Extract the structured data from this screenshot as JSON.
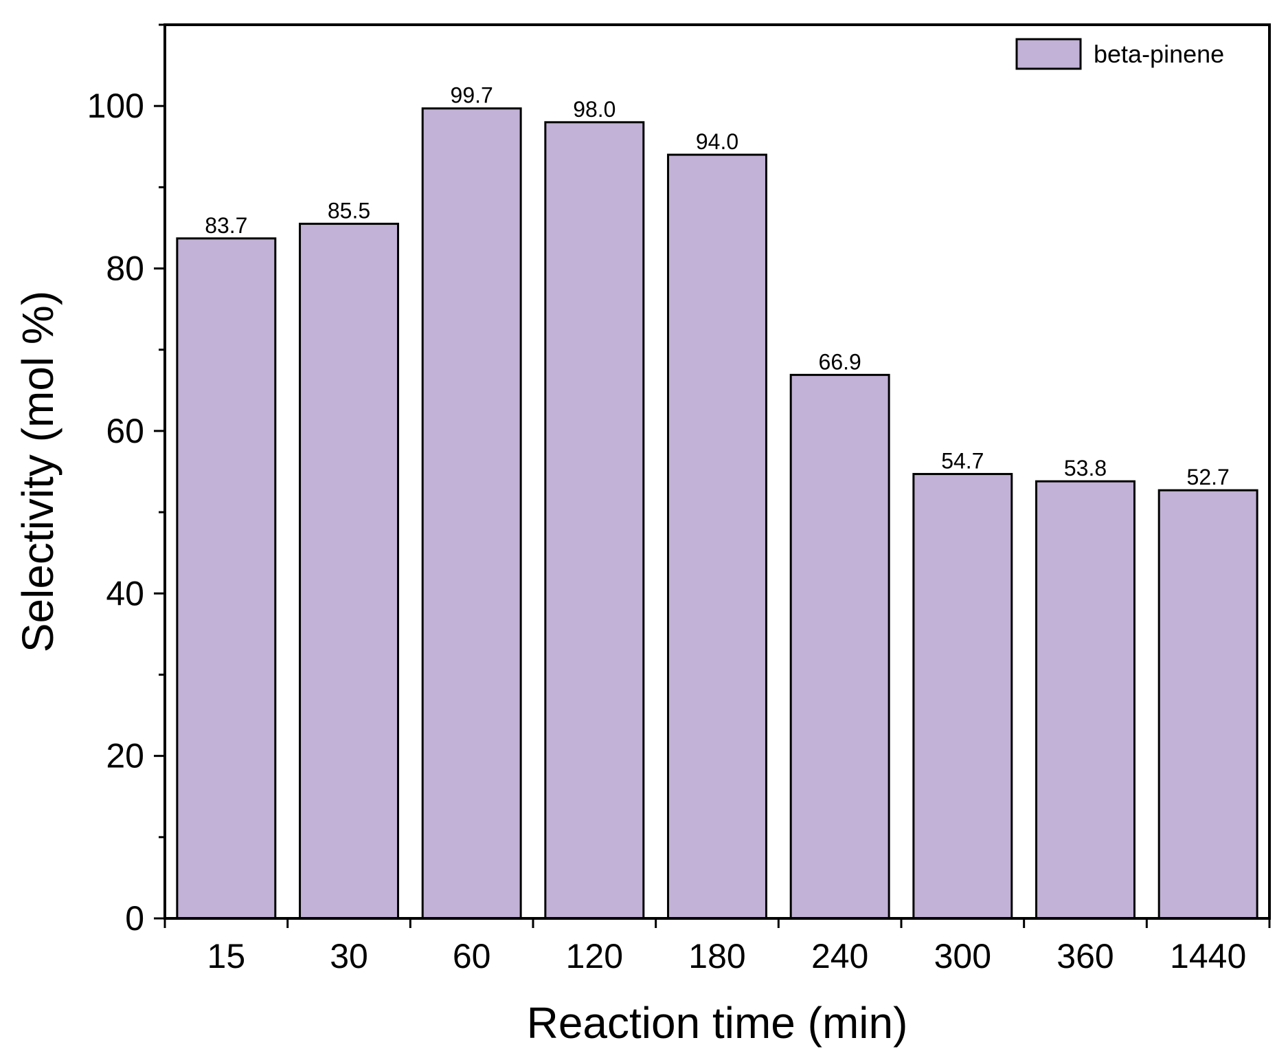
{
  "chart_data": {
    "type": "bar",
    "categories": [
      "15",
      "30",
      "60",
      "120",
      "180",
      "240",
      "300",
      "360",
      "1440"
    ],
    "series": [
      {
        "name": "beta-pinene",
        "values": [
          83.7,
          85.5,
          99.7,
          98.0,
          94.0,
          66.9,
          54.7,
          53.8,
          52.7
        ]
      }
    ],
    "value_labels": [
      "83.7",
      "85.5",
      "99.7",
      "98.0",
      "94.0",
      "66.9",
      "54.7",
      "53.8",
      "52.7"
    ],
    "xlabel": "Reaction time (min)",
    "ylabel": "Selectivity (mol %)",
    "ylim": [
      0,
      110
    ],
    "yticks": [
      0,
      20,
      40,
      60,
      80,
      100
    ],
    "yticks_minor": [
      10,
      30,
      50,
      70,
      90,
      110
    ],
    "legend": {
      "position": "top-right"
    },
    "grid": false,
    "bar_color": "#c2b2d7",
    "edge_color": "#000000"
  }
}
